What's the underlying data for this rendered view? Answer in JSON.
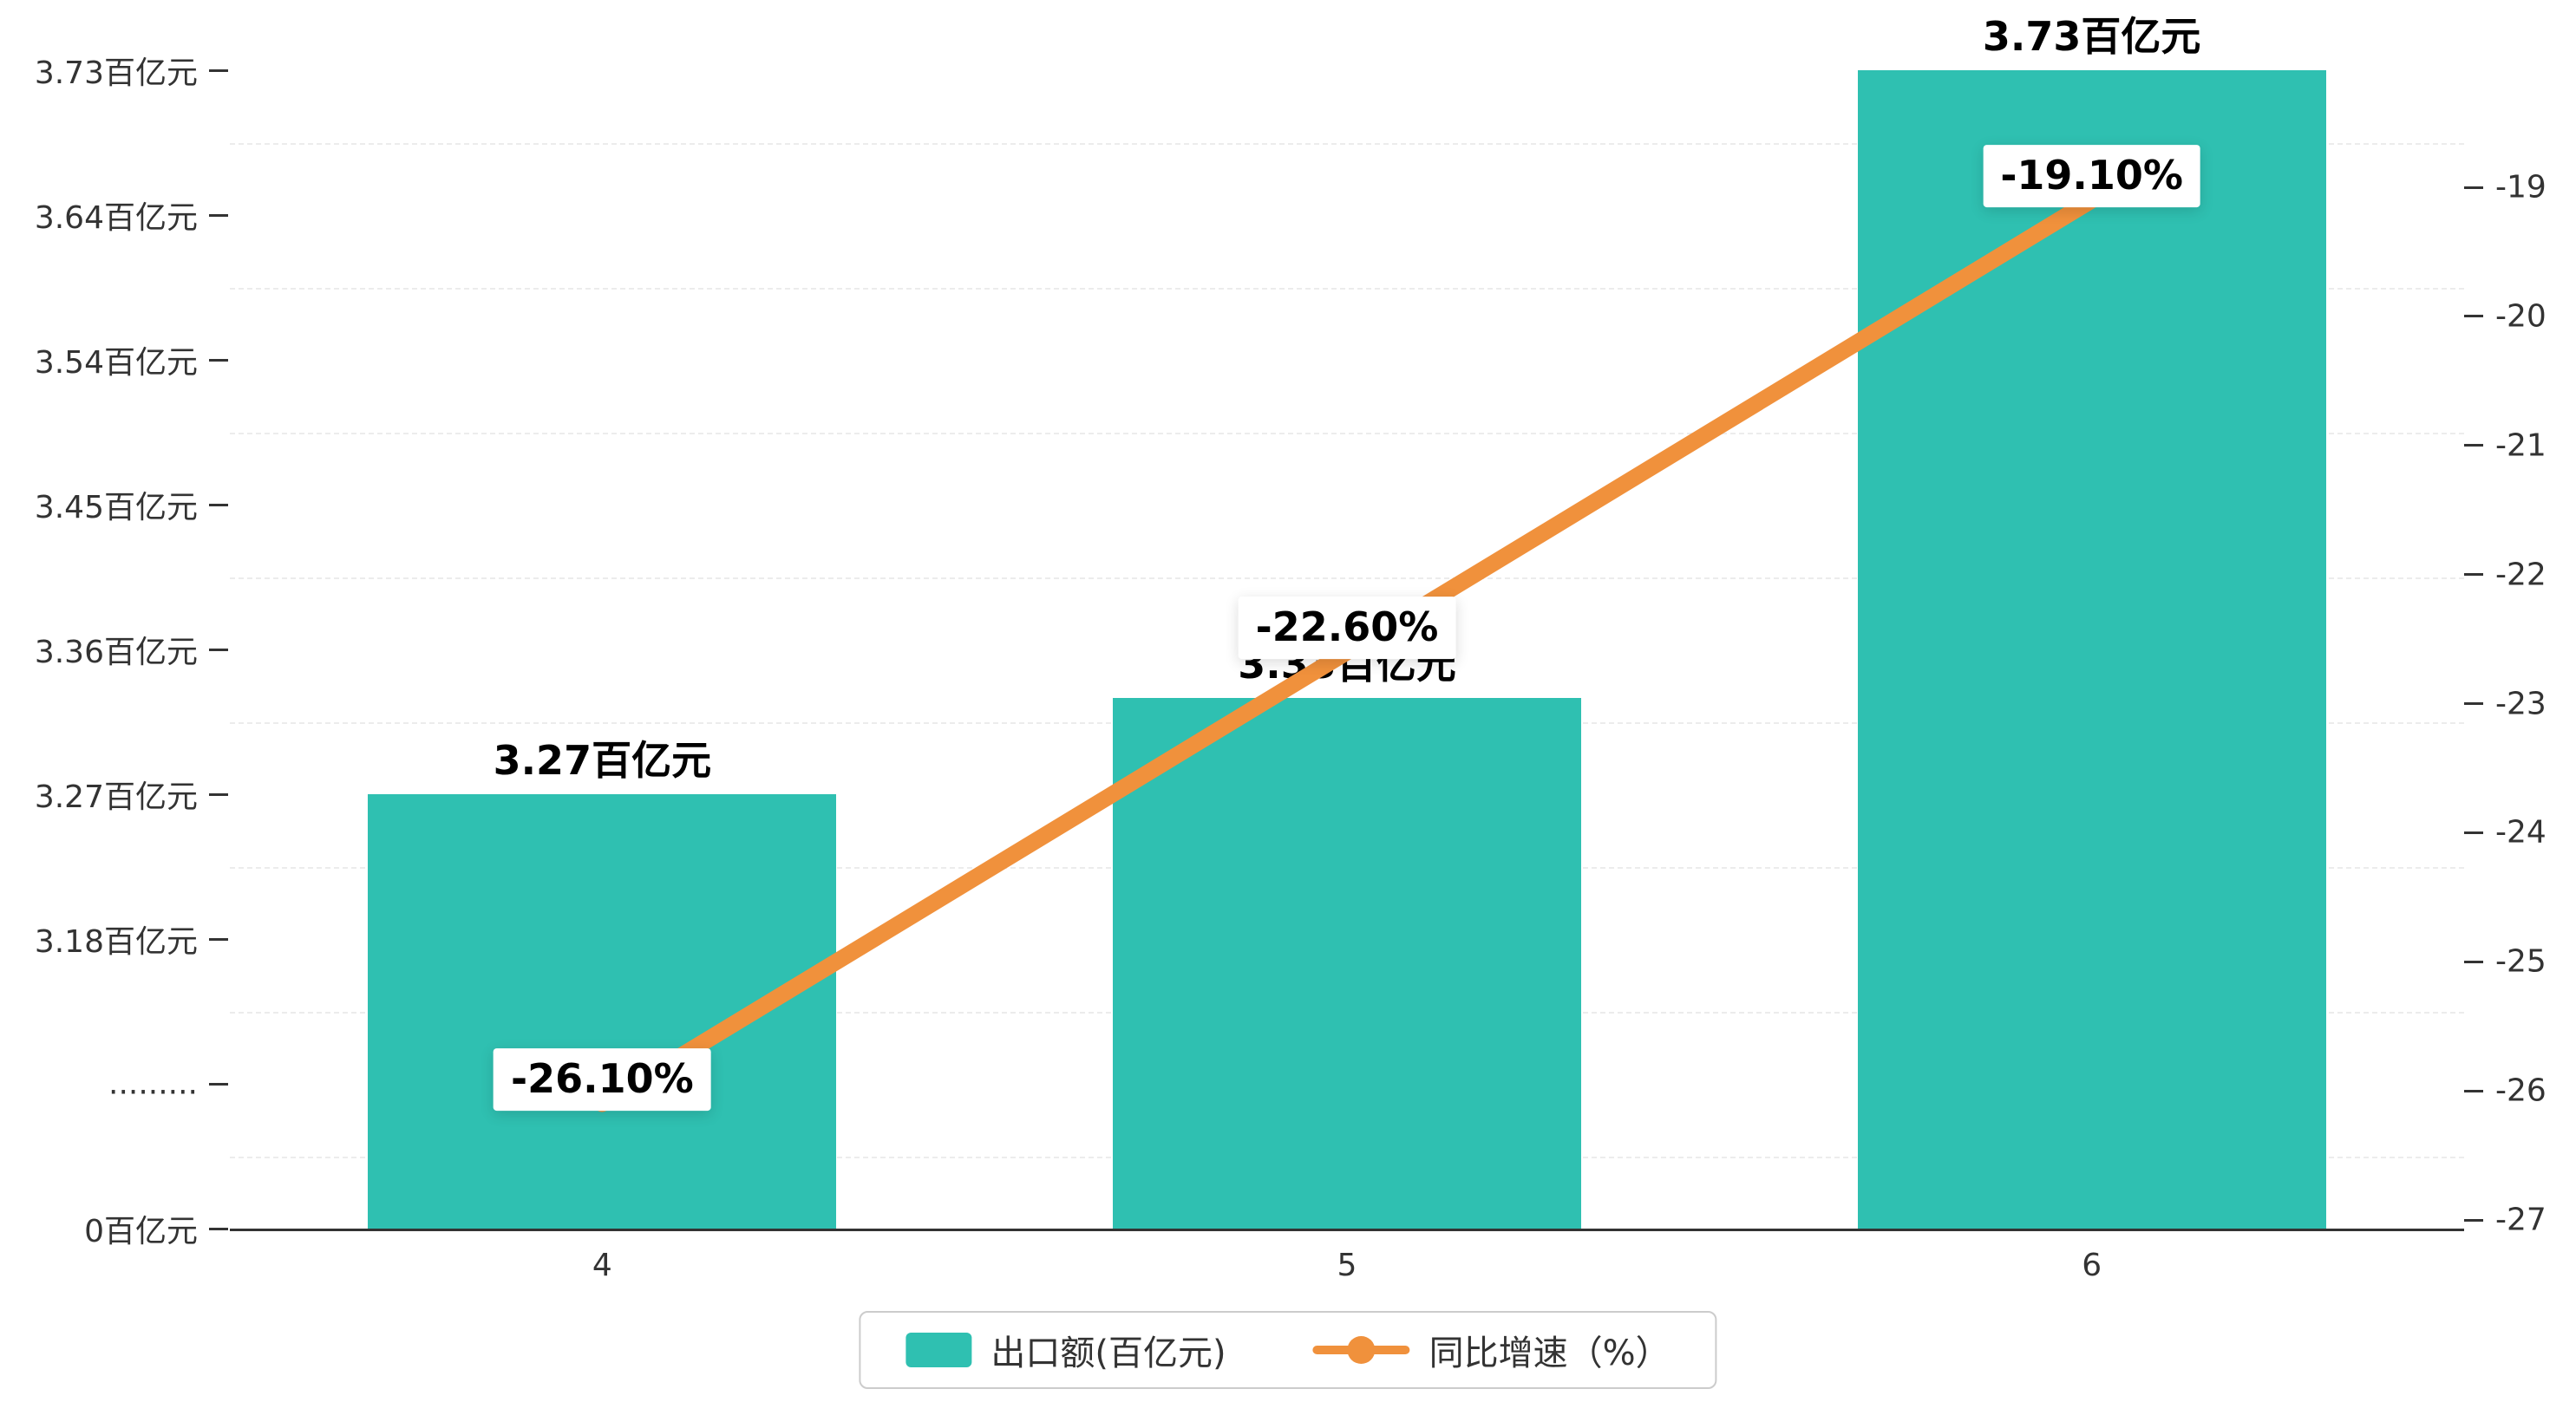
{
  "chart_data": {
    "type": "combo-bar-line",
    "title": "",
    "categories": [
      "4",
      "5",
      "6"
    ],
    "series": [
      {
        "name": "出口额(百亿元)",
        "type": "bar",
        "color": "#2fc0b1",
        "values": [
          3.27,
          3.33,
          3.73
        ],
        "data_labels": [
          "3.27百亿元",
          "3.33百亿元",
          "3.73百亿元"
        ]
      },
      {
        "name": "同比增速（%）",
        "type": "line",
        "color": "#f0913c",
        "values": [
          -26.1,
          -22.6,
          -19.1
        ],
        "data_labels": [
          "-26.10%",
          "-22.60%",
          "-19.10%"
        ]
      }
    ],
    "left_axis": {
      "tick_labels_bottom_to_top": [
        "0百亿元",
        ".........",
        "3.18百亿元",
        "3.27百亿元",
        "3.36百亿元",
        "3.45百亿元",
        "3.54百亿元",
        "3.64百亿元",
        "3.73百亿元"
      ],
      "numeric_ticks": [
        3.18,
        3.27,
        3.36,
        3.45,
        3.54,
        3.64,
        3.73
      ],
      "has_axis_break": true
    },
    "right_axis": {
      "tick_labels_top_to_bottom": [
        "-19",
        "-20",
        "-21",
        "-22",
        "-23",
        "-24",
        "-25",
        "-26",
        "-27"
      ],
      "max": -19,
      "min": -27
    },
    "legend": [
      {
        "label": "出口额(百亿元)",
        "marker": "bar",
        "color": "#2fc0b1"
      },
      {
        "label": "同比增速（%）",
        "marker": "line",
        "color": "#f0913c"
      }
    ],
    "grid": "dashed-horizontal",
    "legend_position": "bottom-center"
  },
  "colors": {
    "background": "#ffffff",
    "bar": "#2fc0b1",
    "line": "#f0913c",
    "axis": "#333333",
    "grid_line": "#ececec",
    "label_text": "#000000",
    "label_bg": "#ffffff"
  }
}
